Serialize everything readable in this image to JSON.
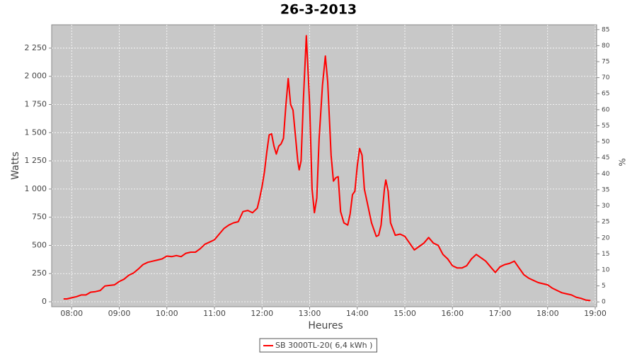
{
  "chart_data": {
    "type": "line",
    "title": "26-3-2013",
    "xlabel": "Heures",
    "ylabel": "Watts",
    "y2label": "%",
    "xlim": [
      7.58,
      19.03
    ],
    "xticks": [
      {
        "value": 8,
        "label": "08:00"
      },
      {
        "value": 9,
        "label": "09:00"
      },
      {
        "value": 10,
        "label": "10:00"
      },
      {
        "value": 11,
        "label": "11:00"
      },
      {
        "value": 12,
        "label": "12:00"
      },
      {
        "value": 13,
        "label": "13:00"
      },
      {
        "value": 14,
        "label": "14:00"
      },
      {
        "value": 15,
        "label": "15:00"
      },
      {
        "value": 16,
        "label": "16:00"
      },
      {
        "value": 17,
        "label": "17:00"
      },
      {
        "value": 18,
        "label": "18:00"
      },
      {
        "value": 19,
        "label": "19:00"
      }
    ],
    "ylim": [
      -44,
      2457
    ],
    "yticks": [
      0,
      250,
      500,
      750,
      {
        "value": 1000,
        "label": "1 000"
      },
      {
        "value": 1250,
        "label": "1 250"
      },
      {
        "value": 1500,
        "label": "1 500"
      },
      {
        "value": 1750,
        "label": "1 750"
      },
      {
        "value": 2000,
        "label": "2 000"
      },
      {
        "value": 2250,
        "label": "2 250"
      }
    ],
    "y2lim": [
      -1.5,
      86.5
    ],
    "y2ticks": [
      0,
      5,
      10,
      15,
      20,
      25,
      30,
      35,
      40,
      45,
      50,
      55,
      60,
      65,
      70,
      75,
      80,
      85
    ],
    "grid": true,
    "legend": "bottom",
    "x": [
      7.83,
      7.9,
      8.0,
      8.1,
      8.2,
      8.3,
      8.4,
      8.5,
      8.6,
      8.7,
      8.8,
      8.9,
      9.0,
      9.1,
      9.2,
      9.3,
      9.4,
      9.5,
      9.6,
      9.7,
      9.8,
      9.9,
      10.0,
      10.1,
      10.2,
      10.3,
      10.4,
      10.5,
      10.6,
      10.7,
      10.8,
      10.9,
      11.0,
      11.1,
      11.2,
      11.3,
      11.4,
      11.5,
      11.6,
      11.7,
      11.8,
      11.9,
      11.95,
      12.0,
      12.05,
      12.1,
      12.15,
      12.2,
      12.25,
      12.3,
      12.35,
      12.4,
      12.45,
      12.5,
      12.55,
      12.6,
      12.65,
      12.7,
      12.75,
      12.78,
      12.82,
      12.87,
      12.93,
      13.0,
      13.05,
      13.1,
      13.15,
      13.2,
      13.27,
      13.33,
      13.38,
      13.45,
      13.5,
      13.55,
      13.6,
      13.65,
      13.72,
      13.8,
      13.85,
      13.9,
      13.95,
      14.0,
      14.05,
      14.1,
      14.15,
      14.2,
      14.3,
      14.4,
      14.45,
      14.5,
      14.57,
      14.6,
      14.65,
      14.7,
      14.8,
      14.9,
      15.0,
      15.1,
      15.2,
      15.3,
      15.4,
      15.5,
      15.6,
      15.7,
      15.8,
      15.9,
      16.0,
      16.1,
      16.2,
      16.3,
      16.4,
      16.5,
      16.6,
      16.7,
      16.8,
      16.9,
      17.0,
      17.1,
      17.2,
      17.3,
      17.4,
      17.5,
      17.6,
      17.7,
      17.8,
      17.9,
      18.0,
      18.1,
      18.2,
      18.3,
      18.4,
      18.5,
      18.6,
      18.7,
      18.8,
      18.9
    ],
    "series": [
      {
        "name": "SB 3000TL-20( 6,4 kWh )",
        "color": "#ff0000",
        "values": [
          25,
          25,
          35,
          45,
          60,
          60,
          85,
          90,
          100,
          140,
          145,
          150,
          180,
          200,
          235,
          255,
          290,
          330,
          350,
          360,
          370,
          380,
          405,
          400,
          410,
          400,
          430,
          440,
          440,
          470,
          510,
          530,
          550,
          600,
          650,
          680,
          700,
          710,
          800,
          810,
          790,
          830,
          920,
          1020,
          1150,
          1330,
          1480,
          1490,
          1380,
          1310,
          1380,
          1400,
          1450,
          1740,
          1980,
          1750,
          1700,
          1480,
          1250,
          1170,
          1250,
          1800,
          2360,
          1750,
          1000,
          790,
          920,
          1450,
          1920,
          2180,
          1950,
          1300,
          1070,
          1100,
          1110,
          800,
          700,
          680,
          780,
          950,
          980,
          1200,
          1360,
          1300,
          1000,
          900,
          700,
          580,
          590,
          680,
          1000,
          1080,
          980,
          700,
          590,
          600,
          580,
          520,
          460,
          490,
          520,
          570,
          520,
          500,
          420,
          380,
          320,
          300,
          300,
          320,
          380,
          420,
          390,
          360,
          310,
          260,
          310,
          330,
          340,
          360,
          300,
          240,
          210,
          190,
          170,
          160,
          150,
          120,
          100,
          80,
          70,
          60,
          40,
          30,
          15,
          10
        ]
      }
    ]
  }
}
